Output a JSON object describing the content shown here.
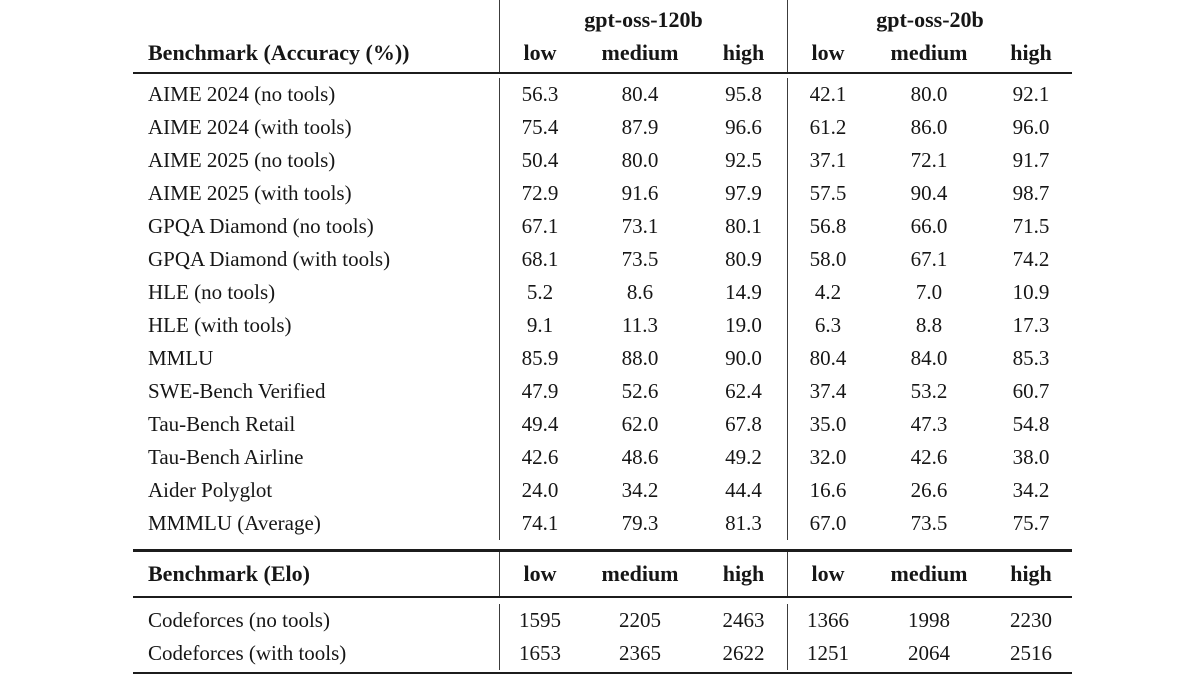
{
  "table": {
    "sections": [
      {
        "id": "accuracy",
        "row_header": "Benchmark (Accuracy (%))",
        "groups": [
          {
            "label": "gpt-oss-120b"
          },
          {
            "label": "gpt-oss-20b"
          }
        ],
        "effort_levels": [
          "low",
          "medium",
          "high"
        ],
        "rows": [
          {
            "label": "AIME 2024 (no tools)",
            "values": [
              "56.3",
              "80.4",
              "95.8",
              "42.1",
              "80.0",
              "92.1"
            ]
          },
          {
            "label": "AIME 2024 (with tools)",
            "values": [
              "75.4",
              "87.9",
              "96.6",
              "61.2",
              "86.0",
              "96.0"
            ]
          },
          {
            "label": "AIME 2025 (no tools)",
            "values": [
              "50.4",
              "80.0",
              "92.5",
              "37.1",
              "72.1",
              "91.7"
            ]
          },
          {
            "label": "AIME 2025 (with tools)",
            "values": [
              "72.9",
              "91.6",
              "97.9",
              "57.5",
              "90.4",
              "98.7"
            ]
          },
          {
            "label": "GPQA Diamond (no tools)",
            "values": [
              "67.1",
              "73.1",
              "80.1",
              "56.8",
              "66.0",
              "71.5"
            ]
          },
          {
            "label": "GPQA Diamond (with tools)",
            "values": [
              "68.1",
              "73.5",
              "80.9",
              "58.0",
              "67.1",
              "74.2"
            ]
          },
          {
            "label": "HLE (no tools)",
            "values": [
              "5.2",
              "8.6",
              "14.9",
              "4.2",
              "7.0",
              "10.9"
            ]
          },
          {
            "label": "HLE (with tools)",
            "values": [
              "9.1",
              "11.3",
              "19.0",
              "6.3",
              "8.8",
              "17.3"
            ]
          },
          {
            "label": "MMLU",
            "values": [
              "85.9",
              "88.0",
              "90.0",
              "80.4",
              "84.0",
              "85.3"
            ]
          },
          {
            "label": "SWE-Bench Verified",
            "values": [
              "47.9",
              "52.6",
              "62.4",
              "37.4",
              "53.2",
              "60.7"
            ]
          },
          {
            "label": "Tau-Bench Retail",
            "values": [
              "49.4",
              "62.0",
              "67.8",
              "35.0",
              "47.3",
              "54.8"
            ]
          },
          {
            "label": "Tau-Bench Airline",
            "values": [
              "42.6",
              "48.6",
              "49.2",
              "32.0",
              "42.6",
              "38.0"
            ]
          },
          {
            "label": "Aider Polyglot",
            "values": [
              "24.0",
              "34.2",
              "44.4",
              "16.6",
              "26.6",
              "34.2"
            ]
          },
          {
            "label": "MMMLU (Average)",
            "values": [
              "74.1",
              "79.3",
              "81.3",
              "67.0",
              "73.5",
              "75.7"
            ]
          }
        ]
      },
      {
        "id": "elo",
        "row_header": "Benchmark (Elo)",
        "effort_levels": [
          "low",
          "medium",
          "high"
        ],
        "rows": [
          {
            "label": "Codeforces (no tools)",
            "values": [
              "1595",
              "2205",
              "2463",
              "1366",
              "1998",
              "2230"
            ]
          },
          {
            "label": "Codeforces (with tools)",
            "values": [
              "1653",
              "2365",
              "2622",
              "1251",
              "2064",
              "2516"
            ]
          }
        ]
      }
    ]
  }
}
